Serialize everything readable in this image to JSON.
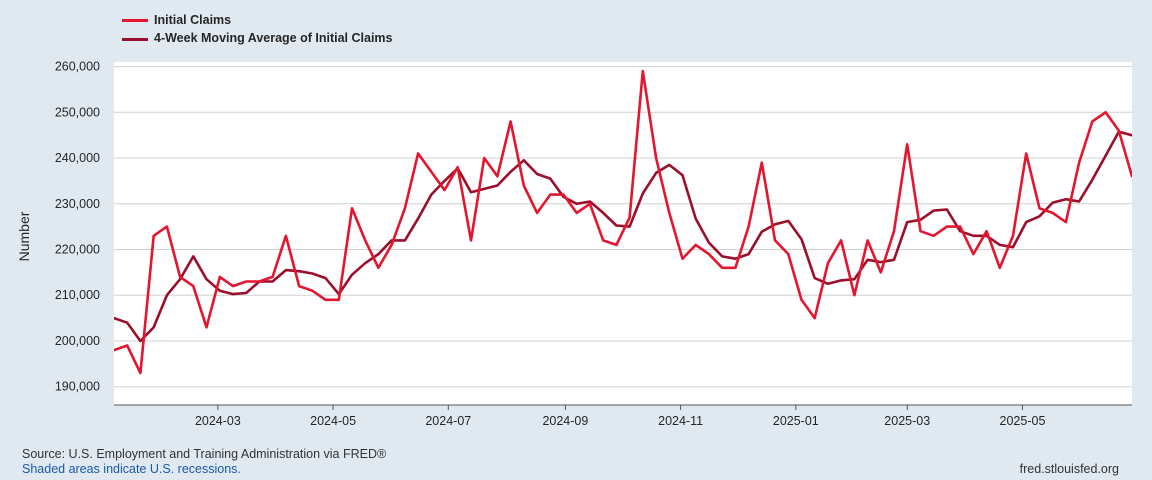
{
  "legend": {
    "series1_label": "Initial Claims",
    "series2_label": "4-Week Moving Average of Initial Claims"
  },
  "footer": {
    "source": "Source: U.S. Employment and Training Administration via FRED®",
    "recessions": "Shaded areas indicate U.S. recessions.",
    "site": "fred.stlouisfed.org"
  },
  "colors": {
    "background": "#e1e9f0",
    "plot_background": "#ffffff",
    "series1": "#e4152e",
    "series2": "#9b0f2a",
    "grid": "#d0d0d0",
    "recession_note": "#1a5aa8"
  },
  "chart_data": {
    "type": "line",
    "title": "",
    "xlabel": "",
    "ylabel": "Number",
    "ylim": [
      186000,
      261000
    ],
    "yticks": [
      190000,
      200000,
      210000,
      220000,
      230000,
      240000,
      250000,
      260000
    ],
    "ytick_labels": [
      "190,000",
      "200,000",
      "210,000",
      "220,000",
      "230,000",
      "240,000",
      "250,000",
      "260,000"
    ],
    "xlim": [
      "2024-01-06",
      "2025-06-28"
    ],
    "xticks": [
      "2024-03-01",
      "2024-05-01",
      "2024-07-01",
      "2024-09-01",
      "2024-11-01",
      "2025-01-01",
      "2025-03-01",
      "2025-05-01"
    ],
    "xtick_labels": [
      "2024-03",
      "2024-05",
      "2024-07",
      "2024-09",
      "2024-11",
      "2025-01",
      "2025-03",
      "2025-05"
    ],
    "grid": true,
    "legend_position": "top-left",
    "x": [
      "2024-01-06",
      "2024-01-13",
      "2024-01-20",
      "2024-01-27",
      "2024-02-03",
      "2024-02-10",
      "2024-02-17",
      "2024-02-24",
      "2024-03-02",
      "2024-03-09",
      "2024-03-16",
      "2024-03-23",
      "2024-03-30",
      "2024-04-06",
      "2024-04-13",
      "2024-04-20",
      "2024-04-27",
      "2024-05-04",
      "2024-05-11",
      "2024-05-18",
      "2024-05-25",
      "2024-06-01",
      "2024-06-08",
      "2024-06-15",
      "2024-06-22",
      "2024-06-29",
      "2024-07-06",
      "2024-07-13",
      "2024-07-20",
      "2024-07-27",
      "2024-08-03",
      "2024-08-10",
      "2024-08-17",
      "2024-08-24",
      "2024-08-31",
      "2024-09-07",
      "2024-09-14",
      "2024-09-21",
      "2024-09-28",
      "2024-10-05",
      "2024-10-12",
      "2024-10-19",
      "2024-10-26",
      "2024-11-02",
      "2024-11-09",
      "2024-11-16",
      "2024-11-23",
      "2024-11-30",
      "2024-12-07",
      "2024-12-14",
      "2024-12-21",
      "2024-12-28",
      "2025-01-04",
      "2025-01-11",
      "2025-01-18",
      "2025-01-25",
      "2025-02-01",
      "2025-02-08",
      "2025-02-15",
      "2025-02-22",
      "2025-03-01",
      "2025-03-08",
      "2025-03-15",
      "2025-03-22",
      "2025-03-29",
      "2025-04-05",
      "2025-04-12",
      "2025-04-19",
      "2025-04-26",
      "2025-05-03",
      "2025-05-10",
      "2025-05-17",
      "2025-05-24",
      "2025-05-31",
      "2025-06-07",
      "2025-06-14",
      "2025-06-21",
      "2025-06-28"
    ],
    "series": [
      {
        "name": "Initial Claims",
        "color": "#e4152e",
        "values": [
          198000,
          199000,
          193000,
          223000,
          225000,
          214000,
          212000,
          203000,
          214000,
          212000,
          213000,
          213000,
          214000,
          223000,
          212000,
          211000,
          209000,
          209000,
          229000,
          222000,
          216000,
          221000,
          229000,
          241000,
          237000,
          233000,
          238000,
          222000,
          240000,
          236000,
          248000,
          234000,
          228000,
          232000,
          232000,
          228000,
          230000,
          222000,
          221000,
          227000,
          259000,
          240000,
          228000,
          218000,
          221000,
          219000,
          216000,
          216000,
          225000,
          239000,
          222000,
          219000,
          209000,
          205000,
          217000,
          222000,
          210000,
          222000,
          215000,
          224000,
          243000,
          224000,
          223000,
          225000,
          225000,
          219000,
          224000,
          216000,
          223000,
          241000,
          229000,
          228000,
          226000,
          239000,
          248000,
          250000,
          246000,
          236000
        ]
      },
      {
        "name": "4-Week Moving Average of Initial Claims",
        "color": "#9b0f2a",
        "values": [
          205000,
          204000,
          200000,
          203000,
          210000,
          213500,
          218500,
          213500,
          211000,
          210250,
          210500,
          213000,
          213000,
          215500,
          215250,
          214750,
          213750,
          210250,
          214500,
          217000,
          219000,
          222000,
          222000,
          226750,
          232000,
          235000,
          237750,
          232500,
          233250,
          234000,
          237000,
          239500,
          236500,
          235500,
          231500,
          230000,
          230500,
          228000,
          225250,
          225000,
          232250,
          236750,
          238500,
          236250,
          226750,
          221500,
          218500,
          218000,
          219000,
          223900,
          225500,
          226250,
          222250,
          213750,
          212500,
          213250,
          213500,
          217750,
          217250,
          217750,
          226000,
          226500,
          228500,
          228750,
          224000,
          223000,
          223000,
          221000,
          220500,
          226000,
          227250,
          230250,
          231000,
          230500,
          235250,
          240500,
          245750,
          245000
        ]
      }
    ]
  }
}
